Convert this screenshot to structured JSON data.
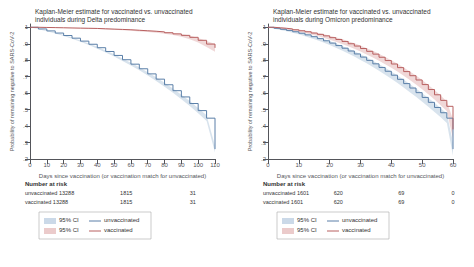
{
  "chart_data": [
    {
      "type": "line",
      "title": "Kaplan-Meier estimate for vaccinated vs. unvaccinated individuals during Delta predominance",
      "x_label": "Days since vaccination (or vaccination match for unvaccinated)",
      "y_label": "Probability of remaining negative to SARS-CoV-2",
      "xlim": [
        0,
        110
      ],
      "xticks": [
        0,
        10,
        20,
        30,
        40,
        50,
        60,
        70,
        80,
        90,
        100,
        110
      ],
      "ylim": [
        0.2,
        1.02
      ],
      "yticks": [
        {
          "value": 0.2,
          "label": ".2"
        },
        {
          "value": 0.3,
          "label": ".3"
        },
        {
          "value": 0.4,
          "label": ".4"
        },
        {
          "value": 0.5,
          "label": ".5"
        },
        {
          "value": 0.6,
          "label": ".6"
        },
        {
          "value": 0.7,
          "label": ".7"
        },
        {
          "value": 0.8,
          "label": ".8"
        },
        {
          "value": 0.9,
          "label": ".9"
        },
        1
      ],
      "grid": false,
      "legend": "bottom",
      "series": [
        {
          "name": "95% CI",
          "type": "band",
          "color": "#a8c0d8",
          "x": [
            0,
            5,
            10,
            15,
            20,
            25,
            30,
            35,
            40,
            45,
            50,
            55,
            60,
            65,
            70,
            75,
            80,
            85,
            90,
            95,
            100,
            105,
            110
          ],
          "low": [
            1.0,
            0.988,
            0.976,
            0.962,
            0.947,
            0.93,
            0.912,
            0.892,
            0.87,
            0.847,
            0.822,
            0.795,
            0.768,
            0.739,
            0.707,
            0.674,
            0.639,
            0.602,
            0.563,
            0.522,
            0.478,
            0.431,
            0.24
          ],
          "high": [
            1.0,
            0.992,
            0.98,
            0.968,
            0.953,
            0.938,
            0.92,
            0.902,
            0.882,
            0.859,
            0.836,
            0.811,
            0.784,
            0.757,
            0.727,
            0.696,
            0.663,
            0.628,
            0.591,
            0.552,
            0.51,
            0.465,
            0.28
          ]
        },
        {
          "name": "95% CI",
          "type": "band",
          "color": "#dea8a8",
          "x": [
            0,
            5,
            10,
            15,
            20,
            25,
            30,
            35,
            40,
            45,
            50,
            55,
            60,
            65,
            70,
            75,
            80,
            85,
            90,
            95,
            100,
            105,
            110
          ],
          "low": [
            1.0,
            0.998,
            0.997,
            0.996,
            0.995,
            0.994,
            0.993,
            0.991,
            0.989,
            0.987,
            0.985,
            0.982,
            0.979,
            0.975,
            0.971,
            0.967,
            0.961,
            0.953,
            0.942,
            0.928,
            0.907,
            0.88,
            0.852
          ],
          "high": [
            1.0,
            1.0,
            0.999,
            0.998,
            0.997,
            0.996,
            0.995,
            0.995,
            0.993,
            0.991,
            0.989,
            0.988,
            0.985,
            0.983,
            0.981,
            0.977,
            0.973,
            0.967,
            0.96,
            0.95,
            0.935,
            0.916,
            0.898
          ]
        },
        {
          "name": "unvaccinated",
          "type": "step",
          "color": "#5a7fa8",
          "x": [
            0,
            5,
            10,
            15,
            20,
            25,
            30,
            35,
            40,
            45,
            50,
            55,
            60,
            65,
            70,
            75,
            80,
            85,
            90,
            95,
            100,
            105,
            110
          ],
          "values": [
            1.0,
            0.99,
            0.978,
            0.965,
            0.95,
            0.934,
            0.916,
            0.897,
            0.876,
            0.853,
            0.829,
            0.803,
            0.776,
            0.748,
            0.717,
            0.685,
            0.651,
            0.615,
            0.577,
            0.537,
            0.494,
            0.448,
            0.26
          ]
        },
        {
          "name": "vaccinated",
          "type": "step",
          "color": "#b86060",
          "x": [
            0,
            5,
            10,
            15,
            20,
            25,
            30,
            35,
            40,
            45,
            50,
            55,
            60,
            65,
            70,
            75,
            80,
            85,
            90,
            95,
            100,
            105,
            110
          ],
          "values": [
            1.0,
            0.999,
            0.998,
            0.997,
            0.996,
            0.995,
            0.994,
            0.993,
            0.991,
            0.989,
            0.987,
            0.985,
            0.982,
            0.979,
            0.976,
            0.972,
            0.967,
            0.96,
            0.951,
            0.939,
            0.921,
            0.898,
            0.875
          ]
        }
      ],
      "number_at_risk": {
        "title": "Number at risk",
        "x": [
          57.2,
          96.8
        ],
        "rows": [
          {
            "label": "unvaccinated 13288",
            "values": [
              1815,
              31
            ]
          },
          {
            "label": "vaccinated 13288",
            "values": [
              1815,
              31
            ]
          }
        ]
      }
    },
    {
      "type": "line",
      "title": "Kaplan-Meier estimate for vaccinated vs. unvaccinated individuals during Omicron predominance",
      "x_label": "Days since vaccination (or vaccination match for unvaccinated)",
      "y_label": "Probability of remaining negative to SARS-CoV-2",
      "xlim": [
        0,
        60
      ],
      "xticks": [
        0,
        10,
        20,
        30,
        40,
        50,
        60
      ],
      "ylim": [
        0.2,
        1.02
      ],
      "yticks": [
        {
          "value": 0.2,
          "label": ".2"
        },
        {
          "value": 0.3,
          "label": ".3"
        },
        {
          "value": 0.4,
          "label": ".4"
        },
        {
          "value": 0.5,
          "label": ".5"
        },
        {
          "value": 0.6,
          "label": ".6"
        },
        {
          "value": 0.7,
          "label": ".7"
        },
        {
          "value": 0.8,
          "label": ".8"
        },
        {
          "value": 0.9,
          "label": ".9"
        },
        1
      ],
      "grid": false,
      "legend": "bottom",
      "series": [
        {
          "name": "95% CI",
          "type": "band",
          "color": "#a8c0d8",
          "x": [
            0,
            2,
            4,
            6,
            8,
            10,
            12,
            14,
            16,
            18,
            20,
            22,
            24,
            26,
            28,
            30,
            32,
            34,
            36,
            38,
            40,
            42,
            44,
            46,
            48,
            50,
            52,
            54,
            56,
            58,
            60
          ],
          "low": [
            1.0,
            0.991,
            0.984,
            0.976,
            0.967,
            0.957,
            0.946,
            0.934,
            0.921,
            0.907,
            0.892,
            0.876,
            0.859,
            0.841,
            0.822,
            0.802,
            0.781,
            0.759,
            0.736,
            0.712,
            0.687,
            0.661,
            0.634,
            0.606,
            0.578,
            0.548,
            0.517,
            0.485,
            0.453,
            0.419,
            0.22
          ],
          "high": [
            1.0,
            0.997,
            0.992,
            0.986,
            0.979,
            0.971,
            0.962,
            0.952,
            0.941,
            0.929,
            0.916,
            0.902,
            0.887,
            0.871,
            0.854,
            0.836,
            0.817,
            0.797,
            0.776,
            0.754,
            0.731,
            0.707,
            0.682,
            0.656,
            0.628,
            0.6,
            0.571,
            0.541,
            0.509,
            0.477,
            0.3
          ]
        },
        {
          "name": "95% CI",
          "type": "band",
          "color": "#dea8a8",
          "x": [
            0,
            2,
            4,
            6,
            8,
            10,
            12,
            14,
            16,
            18,
            20,
            22,
            24,
            26,
            28,
            30,
            32,
            34,
            36,
            38,
            40,
            42,
            44,
            46,
            48,
            50,
            52,
            54,
            56,
            58,
            60
          ],
          "low": [
            1.0,
            0.994,
            0.989,
            0.985,
            0.979,
            0.972,
            0.965,
            0.956,
            0.947,
            0.937,
            0.925,
            0.912,
            0.899,
            0.885,
            0.869,
            0.853,
            0.835,
            0.817,
            0.797,
            0.776,
            0.754,
            0.731,
            0.706,
            0.68,
            0.653,
            0.624,
            0.594,
            0.561,
            0.527,
            0.491,
            0.32
          ],
          "high": [
            1.0,
            1.0,
            0.999,
            0.995,
            0.991,
            0.986,
            0.981,
            0.974,
            0.967,
            0.959,
            0.949,
            0.94,
            0.929,
            0.915,
            0.903,
            0.889,
            0.873,
            0.857,
            0.839,
            0.82,
            0.8,
            0.779,
            0.756,
            0.732,
            0.707,
            0.68,
            0.65,
            0.619,
            0.585,
            0.549,
            0.44
          ]
        },
        {
          "name": "unvaccinated",
          "type": "step",
          "color": "#5a7fa8",
          "x": [
            0,
            2,
            4,
            6,
            8,
            10,
            12,
            14,
            16,
            18,
            20,
            22,
            24,
            26,
            28,
            30,
            32,
            34,
            36,
            38,
            40,
            42,
            44,
            46,
            48,
            50,
            52,
            54,
            56,
            58,
            60
          ],
          "values": [
            1.0,
            0.994,
            0.988,
            0.981,
            0.973,
            0.964,
            0.954,
            0.943,
            0.931,
            0.918,
            0.904,
            0.889,
            0.873,
            0.856,
            0.838,
            0.819,
            0.799,
            0.778,
            0.756,
            0.733,
            0.709,
            0.684,
            0.658,
            0.631,
            0.603,
            0.574,
            0.544,
            0.513,
            0.481,
            0.448,
            0.26
          ]
        },
        {
          "name": "vaccinated",
          "type": "step",
          "color": "#b86060",
          "x": [
            0,
            2,
            4,
            6,
            8,
            10,
            12,
            14,
            16,
            18,
            20,
            22,
            24,
            26,
            28,
            30,
            32,
            34,
            36,
            38,
            40,
            42,
            44,
            46,
            48,
            50,
            52,
            54,
            56,
            58,
            60
          ],
          "values": [
            1.0,
            0.997,
            0.994,
            0.99,
            0.985,
            0.979,
            0.973,
            0.965,
            0.957,
            0.948,
            0.937,
            0.926,
            0.914,
            0.9,
            0.886,
            0.871,
            0.854,
            0.837,
            0.818,
            0.798,
            0.777,
            0.755,
            0.731,
            0.706,
            0.68,
            0.652,
            0.622,
            0.59,
            0.556,
            0.52,
            0.38
          ]
        }
      ],
      "number_at_risk": {
        "title": "Number at risk",
        "x": [
          22.8,
          43.2,
          60
        ],
        "rows": [
          {
            "label": "unvaccinated 1601",
            "values": [
              620,
              69,
              0
            ]
          },
          {
            "label": "vaccinated 1601",
            "values": [
              620,
              69,
              0
            ]
          }
        ]
      }
    }
  ]
}
